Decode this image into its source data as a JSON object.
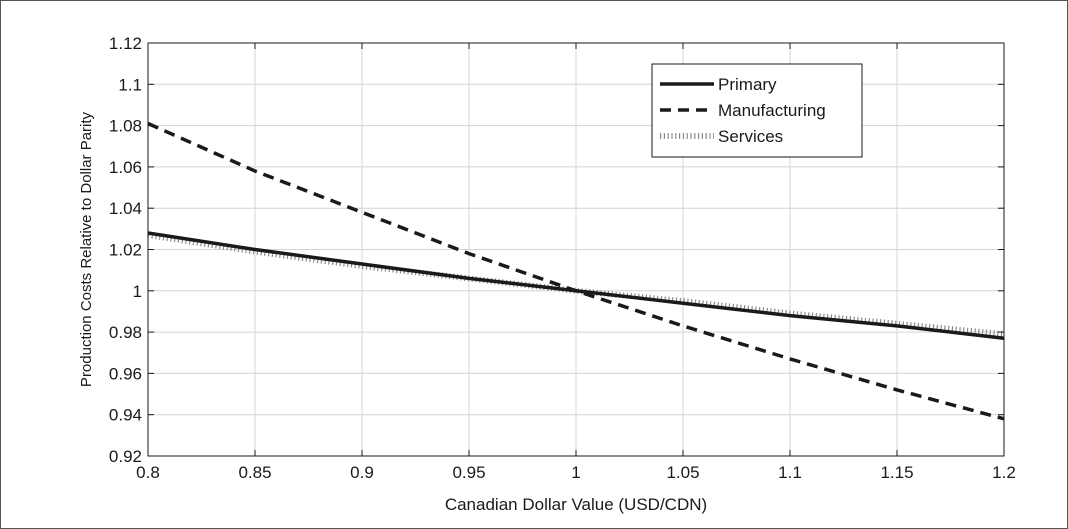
{
  "chart_data": {
    "type": "line",
    "title": "",
    "xlabel": "Canadian Dollar Value (USD/CDN)",
    "ylabel": "Production Costs Relative to Dollar Parity",
    "xlim": [
      0.8,
      1.2
    ],
    "ylim": [
      0.92,
      1.12
    ],
    "xticks": [
      "0.8",
      "0.85",
      "0.9",
      "0.95",
      "1",
      "1.05",
      "1.1",
      "1.15",
      "1.2"
    ],
    "yticks": [
      "0.92",
      "0.94",
      "0.96",
      "0.98",
      "1",
      "1.02",
      "1.04",
      "1.06",
      "1.08",
      "1.1",
      "1.12"
    ],
    "grid": true,
    "legend_position": "top-right",
    "x": [
      0.8,
      0.85,
      0.9,
      0.95,
      1.0,
      1.05,
      1.1,
      1.15,
      1.2
    ],
    "series": [
      {
        "name": "Primary",
        "style": "solid",
        "color": "#1a1a1a",
        "values": [
          1.028,
          1.02,
          1.013,
          1.006,
          1.0,
          0.994,
          0.988,
          0.983,
          0.977
        ]
      },
      {
        "name": "Manufacturing",
        "style": "dashed",
        "color": "#1a1a1a",
        "values": [
          1.081,
          1.058,
          1.038,
          1.018,
          1.0,
          0.983,
          0.967,
          0.952,
          0.938
        ]
      },
      {
        "name": "Services",
        "style": "dotted",
        "color": "#8a8a8a",
        "values": [
          1.027,
          1.019,
          1.012,
          1.006,
          1.0,
          0.995,
          0.989,
          0.984,
          0.979
        ]
      }
    ]
  }
}
